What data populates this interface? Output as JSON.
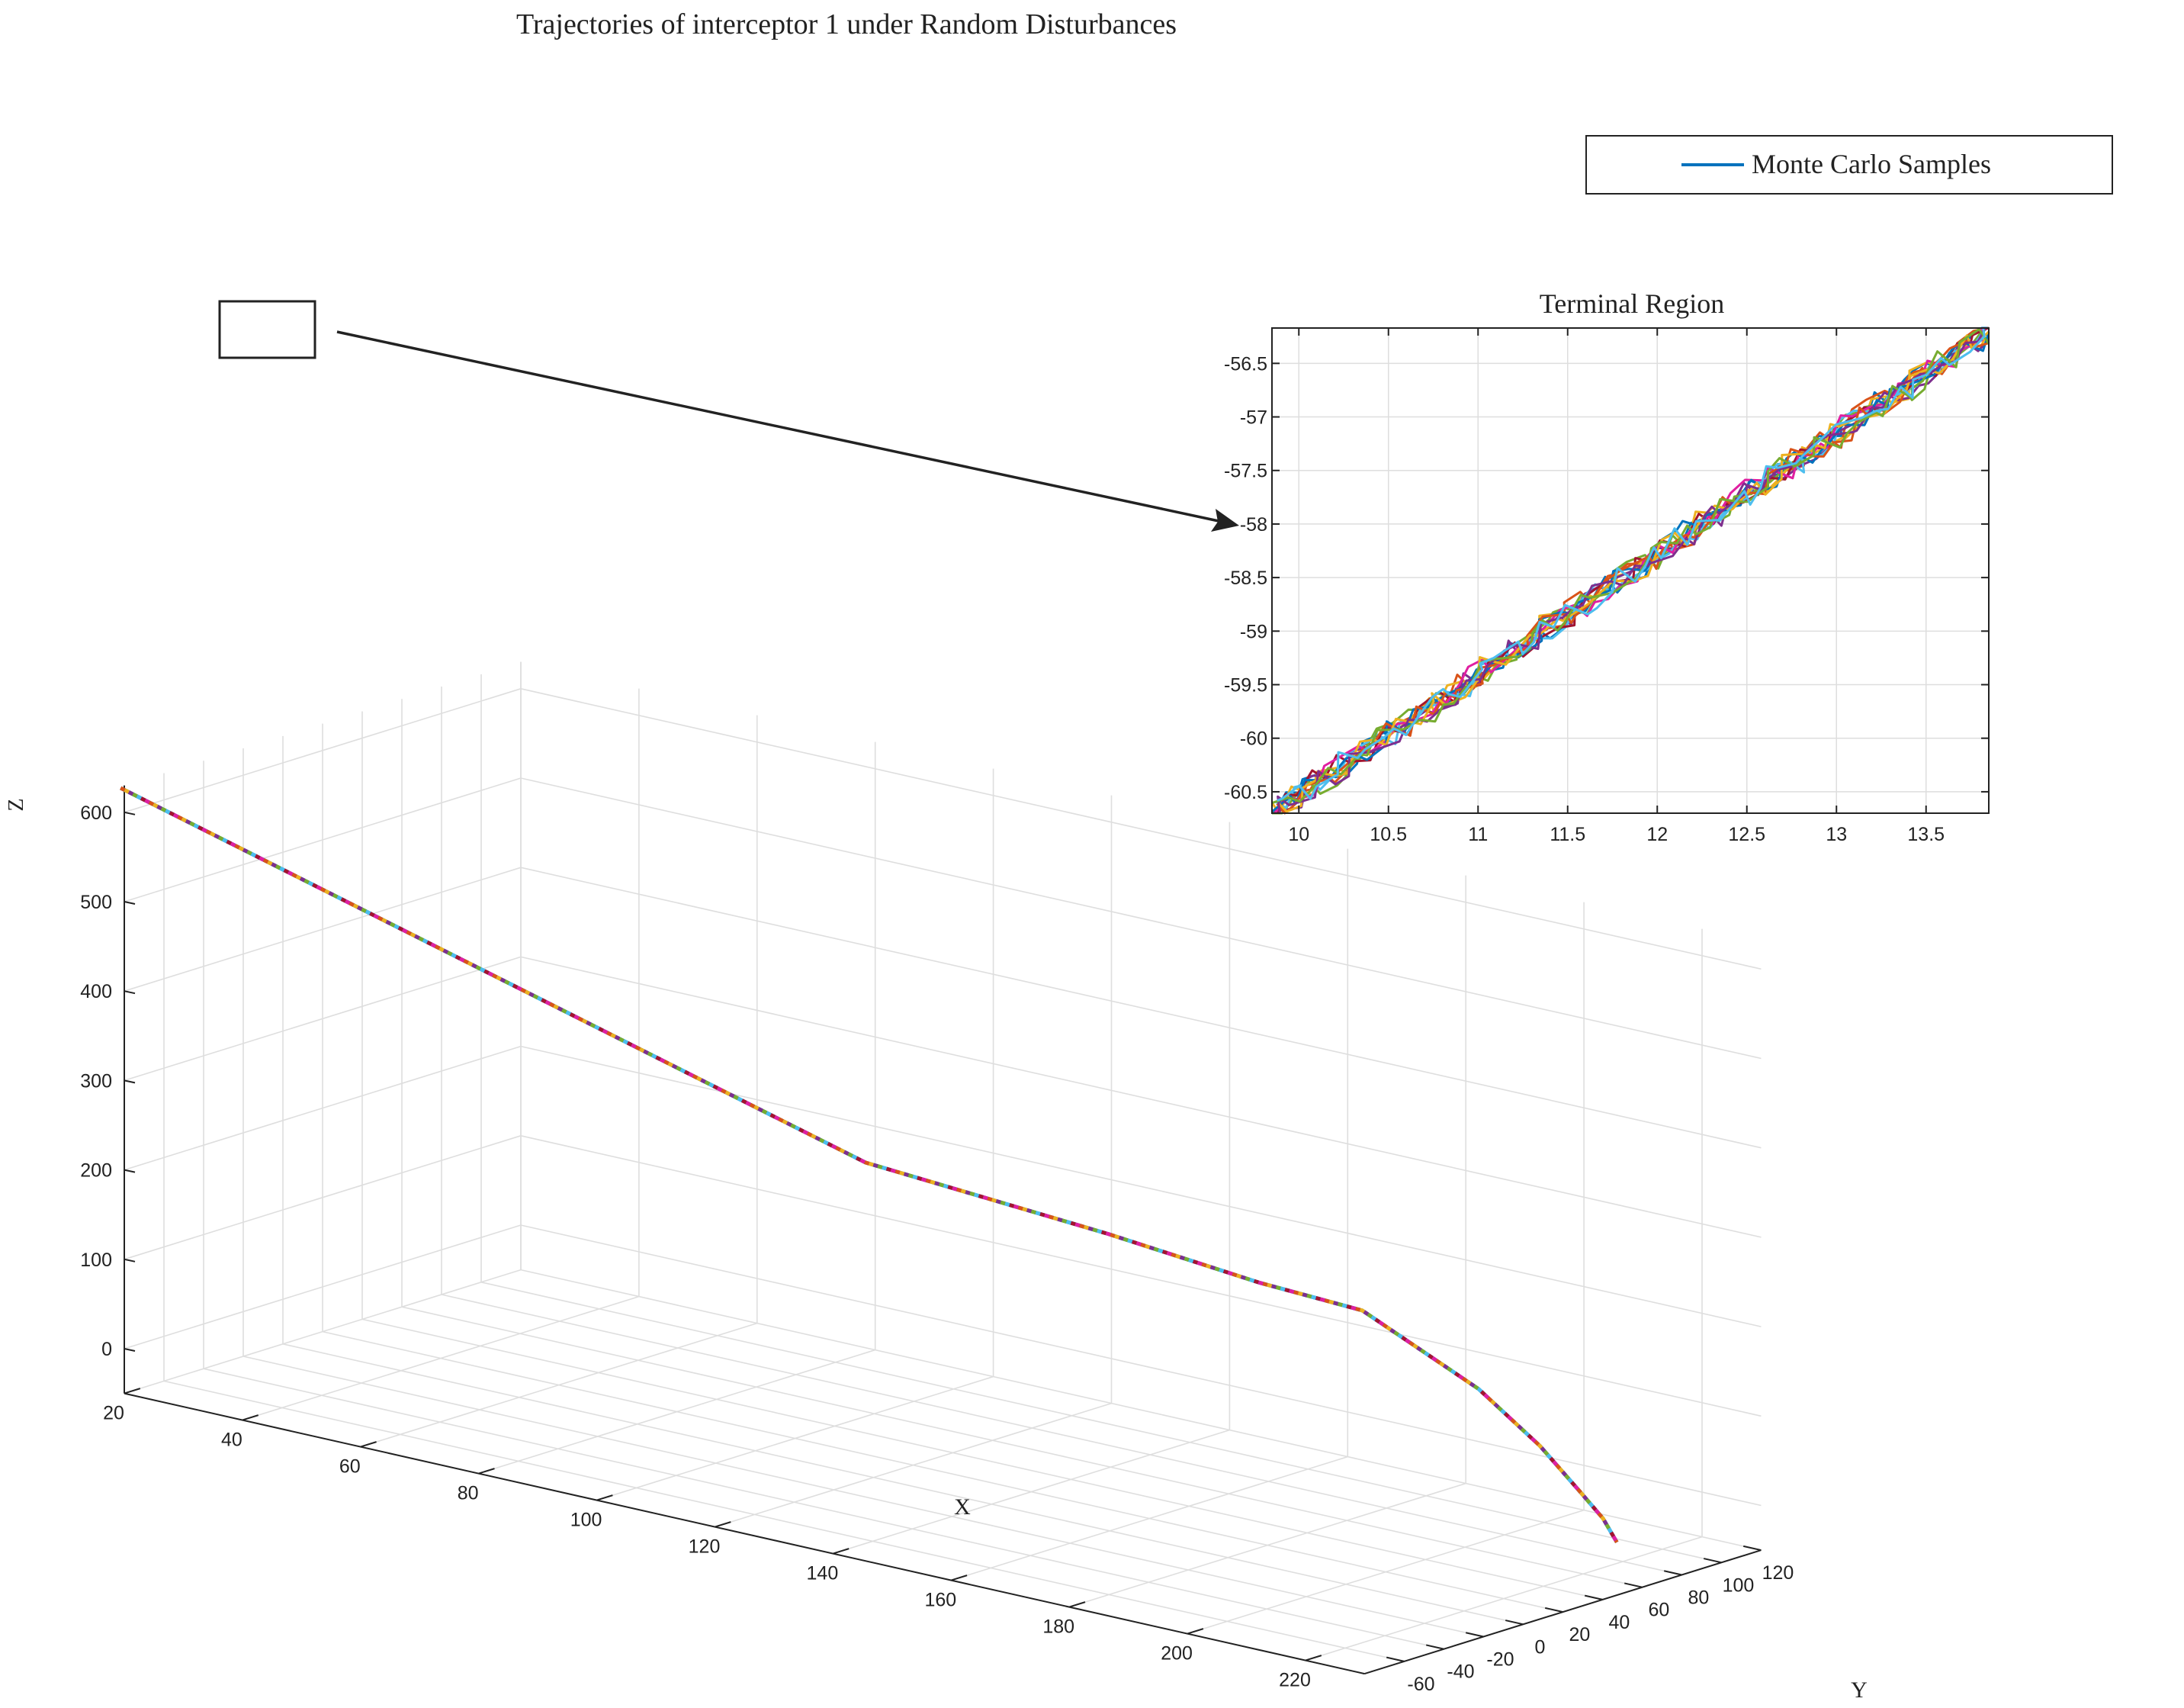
{
  "chart_data": [
    {
      "type": "line3d",
      "title": "Trajectories of interceptor 1 under Random Disturbances",
      "xlabel": "X",
      "ylabel": "Y",
      "zlabel": "Z",
      "xlim": [
        20,
        230
      ],
      "ylim": [
        -80,
        120
      ],
      "zlim": [
        -50,
        630
      ],
      "x_ticks": [
        "20",
        "40",
        "60",
        "80",
        "100",
        "120",
        "140",
        "160",
        "180",
        "200",
        "220"
      ],
      "y_ticks": [
        "-60",
        "-40",
        "-20",
        "0",
        "20",
        "40",
        "60",
        "80",
        "100",
        "120"
      ],
      "z_ticks": [
        "0",
        "100",
        "200",
        "300",
        "400",
        "500",
        "600"
      ],
      "grid": true,
      "legend": {
        "position": "top-right",
        "entries": [
          "Monte Carlo Samples"
        ]
      },
      "legend_color": "#0072BD",
      "series": [
        {
          "name": "Monte Carlo Samples",
          "points": [
            [
              12,
              -58,
              600
            ],
            [
              120,
              -4,
              305
            ],
            [
              155,
              14,
              265
            ],
            [
              176,
              28,
              232
            ],
            [
              190,
              38,
              215
            ],
            [
              205,
              52,
              140
            ],
            [
              212,
              62,
              80
            ],
            [
              216,
              70,
              30
            ],
            [
              218,
              76,
              -2
            ],
            [
              219,
              80,
              -30
            ]
          ]
        }
      ],
      "sample_colors": [
        "#0072BD",
        "#D95319",
        "#EDB120",
        "#7E2F8E",
        "#77AC30",
        "#4DBEEE",
        "#A2142F",
        "#e01fa1"
      ]
    },
    {
      "type": "line",
      "title": "Terminal Region",
      "xlim": [
        9.85,
        13.85
      ],
      "ylim": [
        -60.7,
        -56.17
      ],
      "x_ticks": [
        "10",
        "10.5",
        "11",
        "11.5",
        "12",
        "12.5",
        "13",
        "13.5"
      ],
      "y_ticks": [
        "-56.5",
        "-57",
        "-57.5",
        "-58",
        "-58.5",
        "-59",
        "-59.5",
        "-60",
        "-60.5"
      ],
      "grid": true,
      "trend": {
        "x": [
          9.85,
          13.85
        ],
        "y": [
          -60.7,
          -56.2
        ]
      },
      "noise_amplitude": 0.12,
      "sample_count": 14,
      "sample_colors": [
        "#0072BD",
        "#D95319",
        "#EDB120",
        "#7E2F8E",
        "#77AC30",
        "#4DBEEE",
        "#A2142F",
        "#e01fa1"
      ]
    }
  ]
}
